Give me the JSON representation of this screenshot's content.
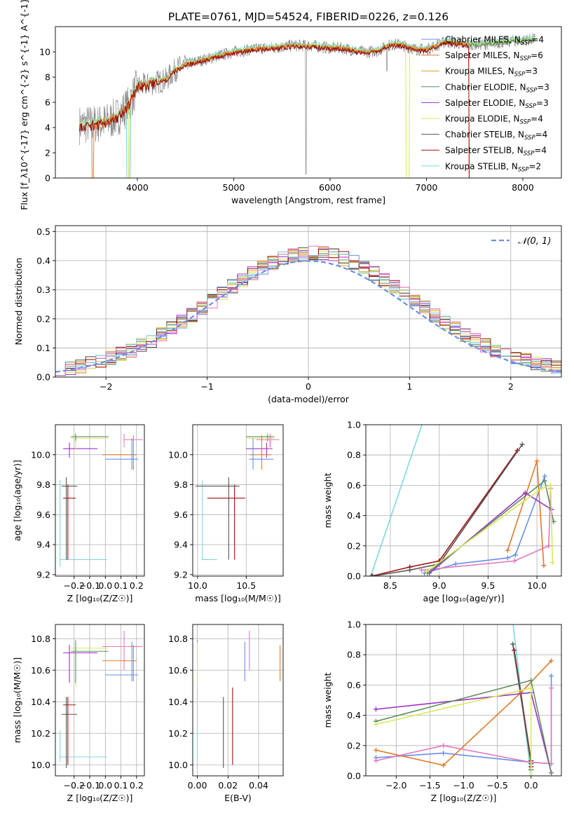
{
  "title": "PLATE=0761, MJD=54524, FIBERID=0226, z=0.126",
  "colors": {
    "chabrier_miles": "#6a8ee8",
    "salpeter_miles": "#e07b28",
    "kroupa_miles": "#d4a017",
    "chabrier_elodie": "#5f8f5f",
    "salpeter_elodie": "#9b30c8",
    "kroupa_elodie": "#d7e85a",
    "chabrier_stelib": "#555555",
    "salpeter_stelib": "#a01010",
    "kroupa_stelib": "#7dd8e0",
    "pink": "#e377c2",
    "data": "#888888"
  },
  "chart_data": [
    {
      "id": "spectrum",
      "type": "line",
      "xlabel": "wavelength [Angstrom, rest frame]",
      "ylabel": "Flux [f_λ10^{-17} erg cm^{-2} s^{-1} A^{-1}]",
      "xlim": [
        3150,
        8400
      ],
      "ylim": [
        0,
        12
      ],
      "xticks": [
        4000,
        5000,
        6000,
        7000,
        8000
      ],
      "yticks": [
        0,
        2,
        4,
        6,
        8,
        10
      ],
      "legend": [
        {
          "label": "Chabrier MILES, N",
          "sub": "SSP",
          "suffix": "=4",
          "color": "chabrier_miles"
        },
        {
          "label": "Salpeter MILES, N",
          "sub": "SSP",
          "suffix": "=6",
          "color": "salpeter_miles"
        },
        {
          "label": "Kroupa MILES, N",
          "sub": "SSP",
          "suffix": "=3",
          "color": "kroupa_miles"
        },
        {
          "label": "Chabrier ELODIE, N",
          "sub": "SSP",
          "suffix": "=3",
          "color": "chabrier_elodie"
        },
        {
          "label": "Salpeter ELODIE, N",
          "sub": "SSP",
          "suffix": "=3",
          "color": "salpeter_elodie"
        },
        {
          "label": "Kroupa ELODIE, N",
          "sub": "SSP",
          "suffix": "=4",
          "color": "kroupa_elodie"
        },
        {
          "label": "Chabrier STELIB, N",
          "sub": "SSP",
          "suffix": "=4",
          "color": "chabrier_stelib"
        },
        {
          "label": "Salpeter STELIB, N",
          "sub": "SSP",
          "suffix": "=4",
          "color": "salpeter_stelib"
        },
        {
          "label": "Kroupa STELIB, N",
          "sub": "SSP",
          "suffix": "=2",
          "color": "kroupa_stelib"
        }
      ],
      "continuum": {
        "x": [
          3400,
          3600,
          3700,
          3800,
          3900,
          4000,
          4100,
          4200,
          4300,
          4400,
          4500,
          4600,
          4700,
          4800,
          4900,
          5000,
          5100,
          5200,
          5300,
          5400,
          5500,
          5600,
          5700,
          5800,
          5900,
          6000,
          6100,
          6200,
          6300,
          6400,
          6500,
          6600,
          6700,
          6800,
          6900,
          7000,
          7100,
          7200,
          7400,
          7600,
          7800,
          8000,
          8100
        ],
        "y": [
          4.2,
          4.3,
          4.5,
          4.9,
          5.7,
          7.2,
          7.4,
          7.6,
          7.8,
          8.6,
          9.0,
          9.2,
          9.4,
          9.6,
          9.8,
          10.0,
          10.1,
          10.2,
          10.3,
          10.3,
          10.4,
          10.5,
          10.5,
          10.5,
          10.4,
          10.3,
          10.3,
          10.2,
          10.0,
          10.0,
          10.1,
          10.5,
          10.6,
          10.4,
          10.2,
          10.2,
          10.5,
          10.8,
          10.6,
          10.6,
          10.8,
          10.9,
          11.0
        ]
      }
    },
    {
      "id": "residuals",
      "type": "line",
      "xlabel": "(data-model)/error",
      "ylabel": "Normed distribution",
      "xlim": [
        -2.5,
        2.5
      ],
      "ylim": [
        0,
        0.52
      ],
      "xticks": [
        -2,
        -1,
        0,
        1,
        2
      ],
      "yticks": [
        0.0,
        0.1,
        0.2,
        0.3,
        0.4,
        0.5
      ],
      "legend_label": "𝒩(0, 1)",
      "grid": true
    },
    {
      "id": "age_vs_Z",
      "type": "scatter",
      "xlabel": "Z [log₁₀(Z/Z☉)]",
      "ylabel": "age  [log₁₀(age/yr)]",
      "xlim": [
        -0.32,
        0.25
      ],
      "ylim": [
        9.19,
        10.2
      ],
      "xticks": [
        -0.2,
        -0.1,
        0.0,
        0.1,
        0.2
      ],
      "yticks": [
        9.2,
        9.4,
        9.6,
        9.8,
        10.0
      ],
      "crosses": [
        {
          "c": "kroupa_stelib",
          "x": -0.29,
          "x0": -0.29,
          "x1": 0.01,
          "y": 9.3,
          "y0": 9.25,
          "y1": 9.83
        },
        {
          "c": "salpeter_stelib",
          "x": -0.24,
          "x0": -0.27,
          "x1": -0.19,
          "y": 9.71,
          "y0": 9.3,
          "y1": 9.8
        },
        {
          "c": "chabrier_stelib",
          "x": -0.25,
          "x0": -0.28,
          "x1": -0.18,
          "y": 9.79,
          "y0": 9.3,
          "y1": 9.85
        },
        {
          "c": "salpeter_elodie",
          "x": -0.23,
          "x0": -0.27,
          "x1": -0.05,
          "y": 10.04,
          "y0": 9.98,
          "y1": 10.08
        },
        {
          "c": "kroupa_elodie",
          "x": -0.19,
          "x0": -0.22,
          "x1": 0.02,
          "y": 10.11,
          "y0": 10.03,
          "y1": 10.13
        },
        {
          "c": "chabrier_elodie",
          "x": -0.19,
          "x0": -0.22,
          "x1": 0.02,
          "y": 10.12,
          "y0": 10.09,
          "y1": 10.14
        },
        {
          "c": "pink",
          "x": 0.12,
          "x0": 0.12,
          "x1": 0.24,
          "y": 10.1,
          "y0": 10.05,
          "y1": 10.14
        },
        {
          "c": "salpeter_miles",
          "x": 0.18,
          "x0": -0.02,
          "x1": 0.2,
          "y": 10.0,
          "y0": 9.9,
          "y1": 10.13
        },
        {
          "c": "chabrier_miles",
          "x": 0.17,
          "x0": 0.0,
          "x1": 0.21,
          "y": 9.97,
          "y0": 9.9,
          "y1": 10.11
        }
      ]
    },
    {
      "id": "age_vs_mass",
      "type": "scatter",
      "xlabel": "mass [log₁₀(M/M☉)]",
      "ylabel": "",
      "xlim": [
        9.95,
        10.88
      ],
      "ylim": [
        9.19,
        10.2
      ],
      "xticks": [
        10.0,
        10.5
      ],
      "yticks": [
        9.2,
        9.4,
        9.6,
        9.8,
        10.0
      ],
      "crosses": [
        {
          "c": "kroupa_stelib",
          "x": 10.05,
          "x0": 10.04,
          "x1": 10.2,
          "y": 9.3,
          "y0": 9.3,
          "y1": 9.83
        },
        {
          "c": "salpeter_stelib",
          "x": 10.38,
          "x0": 10.1,
          "x1": 10.49,
          "y": 9.71,
          "y0": 9.3,
          "y1": 9.8
        },
        {
          "c": "chabrier_stelib",
          "x": 10.32,
          "x0": 9.98,
          "x1": 10.43,
          "y": 9.79,
          "y0": 9.3,
          "y1": 9.85
        },
        {
          "c": "salpeter_elodie",
          "x": 10.71,
          "x0": 10.5,
          "x1": 10.77,
          "y": 10.04,
          "y0": 9.98,
          "y1": 10.08
        },
        {
          "c": "kroupa_elodie",
          "x": 10.74,
          "x0": 10.5,
          "x1": 10.79,
          "y": 10.11,
          "y0": 10.03,
          "y1": 10.13
        },
        {
          "c": "chabrier_elodie",
          "x": 10.72,
          "x0": 10.5,
          "x1": 10.79,
          "y": 10.12,
          "y0": 10.09,
          "y1": 10.14
        },
        {
          "c": "pink",
          "x": 10.75,
          "x0": 10.6,
          "x1": 10.84,
          "y": 10.1,
          "y0": 10.05,
          "y1": 10.14
        },
        {
          "c": "salpeter_miles",
          "x": 10.66,
          "x0": 10.53,
          "x1": 10.76,
          "y": 10.0,
          "y0": 9.9,
          "y1": 10.13
        },
        {
          "c": "chabrier_miles",
          "x": 10.57,
          "x0": 10.53,
          "x1": 10.78,
          "y": 9.97,
          "y0": 9.9,
          "y1": 10.11
        }
      ]
    },
    {
      "id": "mass_vs_Z",
      "type": "scatter",
      "xlabel": "Z [log₁₀(Z/Z☉)]",
      "ylabel": "mass [log₁₀(M/M☉)]",
      "xlim": [
        -0.32,
        0.25
      ],
      "ylim": [
        9.93,
        10.89
      ],
      "xticks": [
        -0.2,
        -0.1,
        0.0,
        0.1,
        0.2
      ],
      "yticks": [
        10.0,
        10.2,
        10.4,
        10.6,
        10.8
      ],
      "crosses": [
        {
          "c": "kroupa_stelib",
          "x": -0.29,
          "x0": -0.29,
          "x1": 0.01,
          "y": 10.05,
          "y0": 10.02,
          "y1": 10.22
        },
        {
          "c": "salpeter_stelib",
          "x": -0.24,
          "x0": -0.27,
          "x1": -0.19,
          "y": 10.38,
          "y0": 10.0,
          "y1": 10.43
        },
        {
          "c": "chabrier_stelib",
          "x": -0.25,
          "x0": -0.28,
          "x1": -0.18,
          "y": 10.32,
          "y0": 9.98,
          "y1": 10.43
        },
        {
          "c": "salpeter_elodie",
          "x": -0.23,
          "x0": -0.27,
          "x1": -0.05,
          "y": 10.71,
          "y0": 10.52,
          "y1": 10.76
        },
        {
          "c": "kroupa_elodie",
          "x": -0.19,
          "x0": -0.22,
          "x1": 0.02,
          "y": 10.74,
          "y0": 10.5,
          "y1": 10.78
        },
        {
          "c": "chabrier_elodie",
          "x": -0.19,
          "x0": -0.22,
          "x1": 0.02,
          "y": 10.72,
          "y0": 10.52,
          "y1": 10.79
        },
        {
          "c": "pink",
          "x": 0.12,
          "x0": -0.02,
          "x1": 0.24,
          "y": 10.75,
          "y0": 10.6,
          "y1": 10.85
        },
        {
          "c": "salpeter_miles",
          "x": 0.18,
          "x0": -0.02,
          "x1": 0.2,
          "y": 10.66,
          "y0": 10.53,
          "y1": 10.76
        },
        {
          "c": "chabrier_miles",
          "x": 0.17,
          "x0": 0.0,
          "x1": 0.21,
          "y": 10.57,
          "y0": 10.53,
          "y1": 10.78
        }
      ]
    },
    {
      "id": "mass_vs_ebv",
      "type": "scatter",
      "xlabel": "E(B-V)",
      "ylabel": "",
      "xlim": [
        -0.003,
        0.056
      ],
      "ylim": [
        9.93,
        10.89
      ],
      "xticks": [
        0.0,
        0.02,
        0.04
      ],
      "yticks": [
        10.0,
        10.2,
        10.4,
        10.6,
        10.8
      ],
      "vlines": [
        {
          "c": "kroupa_stelib",
          "x": 0.0,
          "y0": 10.02,
          "y1": 10.22
        },
        {
          "c": "chabrier_elodie",
          "x": 0.0,
          "y0": 10.52,
          "y1": 10.79
        },
        {
          "c": "kroupa_elodie",
          "x": 0.0,
          "y0": 10.5,
          "y1": 10.78
        },
        {
          "c": "chabrier_stelib",
          "x": 0.017,
          "y0": 9.98,
          "y1": 10.43
        },
        {
          "c": "salpeter_stelib",
          "x": 0.023,
          "y0": 10.0,
          "y1": 10.49
        },
        {
          "c": "chabrier_miles",
          "x": 0.031,
          "y0": 10.53,
          "y1": 10.78
        },
        {
          "c": "pink",
          "x": 0.034,
          "y0": 10.6,
          "y1": 10.85
        },
        {
          "c": "salpeter_miles",
          "x": 0.054,
          "y0": 10.53,
          "y1": 10.76
        }
      ]
    },
    {
      "id": "weight_vs_age",
      "type": "line",
      "xlabel": "age  [log₁₀(age/yr)]",
      "ylabel": "mass weight",
      "xlim": [
        8.25,
        10.25
      ],
      "ylim": [
        0,
        1.0
      ],
      "xticks": [
        8.5,
        9.0,
        9.5,
        10.0
      ],
      "yticks": [
        0.0,
        0.2,
        0.4,
        0.6,
        0.8,
        1.0
      ],
      "series": [
        {
          "c": "kroupa_stelib",
          "x": [
            8.3,
            8.85
          ],
          "y": [
            0.0,
            1.05
          ]
        },
        {
          "c": "salpeter_stelib",
          "x": [
            8.31,
            8.7,
            9.0,
            9.8
          ],
          "y": [
            0.0,
            0.06,
            0.1,
            0.83
          ]
        },
        {
          "c": "chabrier_stelib",
          "x": [
            8.32,
            8.7,
            9.0,
            9.85
          ],
          "y": [
            0.0,
            0.04,
            0.08,
            0.87
          ]
        },
        {
          "c": "chabrier_miles",
          "x": [
            8.85,
            9.17,
            9.7,
            9.78,
            10.08
          ],
          "y": [
            0.02,
            0.08,
            0.12,
            0.14,
            0.66
          ]
        },
        {
          "c": "salpeter_miles",
          "x": [
            9.7,
            10.0,
            10.07
          ],
          "y": [
            0.17,
            0.76,
            0.07
          ]
        },
        {
          "c": "pink",
          "x": [
            8.82,
            9.77,
            10.12,
            10.14
          ],
          "y": [
            0.04,
            0.1,
            0.2,
            0.58
          ]
        },
        {
          "c": "salpeter_elodie",
          "x": [
            8.9,
            9.88,
            10.15
          ],
          "y": [
            0.02,
            0.55,
            0.44
          ]
        },
        {
          "c": "chabrier_elodie",
          "x": [
            8.88,
            10.08,
            10.17
          ],
          "y": [
            0.02,
            0.63,
            0.36
          ]
        },
        {
          "c": "kroupa_elodie",
          "x": [
            8.87,
            10.05,
            10.14,
            10.16
          ],
          "y": [
            0.03,
            0.58,
            0.6,
            0.09
          ]
        }
      ]
    },
    {
      "id": "weight_vs_Z",
      "type": "line",
      "xlabel": "Z [log₁₀(Z/Z☉)]",
      "ylabel": "mass weight",
      "xlim": [
        -2.45,
        0.45
      ],
      "ylim": [
        0,
        1.0
      ],
      "xticks": [
        -2.0,
        -1.5,
        -1.0,
        -0.5,
        0.0
      ],
      "yticks": [
        0.0,
        0.2,
        0.4,
        0.6,
        0.8,
        1.0
      ],
      "series": [
        {
          "c": "kroupa_stelib",
          "x": [
            -0.28,
            0.0
          ],
          "y": [
            1.05,
            0.0
          ]
        },
        {
          "c": "salpeter_stelib",
          "x": [
            -0.25,
            0.0,
            0.0
          ],
          "y": [
            0.83,
            0.1,
            0.06
          ]
        },
        {
          "c": "chabrier_stelib",
          "x": [
            -0.27,
            0.0,
            0.0
          ],
          "y": [
            0.87,
            0.08,
            0.04
          ]
        },
        {
          "c": "chabrier_miles",
          "x": [
            -2.3,
            -1.3,
            0.0,
            0.3,
            0.3
          ],
          "y": [
            0.12,
            0.15,
            0.09,
            0.08,
            0.66
          ]
        },
        {
          "c": "salpeter_miles",
          "x": [
            -2.3,
            -1.3,
            -0.15,
            0.3
          ],
          "y": [
            0.17,
            0.07,
            0.55,
            0.76
          ]
        },
        {
          "c": "pink",
          "x": [
            -2.3,
            -1.3,
            0.0,
            0.3,
            0.3
          ],
          "y": [
            0.1,
            0.2,
            0.09,
            0.08,
            0.58
          ]
        },
        {
          "c": "salpeter_elodie",
          "x": [
            -2.3,
            0.0,
            0.3
          ],
          "y": [
            0.44,
            0.55,
            0.02
          ]
        },
        {
          "c": "chabrier_elodie",
          "x": [
            -2.3,
            0.0,
            0.3
          ],
          "y": [
            0.36,
            0.63,
            0.02
          ]
        },
        {
          "c": "kroupa_elodie",
          "x": [
            -2.3,
            0.0,
            0.0
          ],
          "y": [
            0.34,
            0.58,
            0.0
          ]
        }
      ]
    }
  ]
}
